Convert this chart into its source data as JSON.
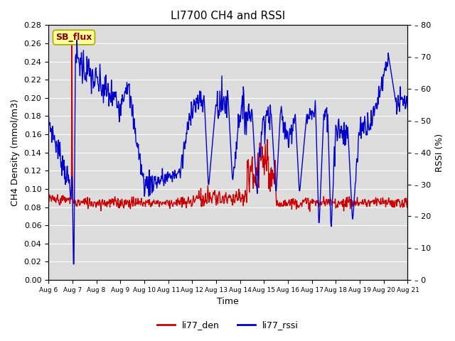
{
  "title": "LI7700 CH4 and RSSI",
  "xlabel": "Time",
  "ylabel_left": "CH4 Density (mmol/m3)",
  "ylabel_right": "RSSI (%)",
  "ylim_left": [
    0.0,
    0.28
  ],
  "ylim_right": [
    0,
    80
  ],
  "yticks_left": [
    0.0,
    0.02,
    0.04,
    0.06,
    0.08,
    0.1,
    0.12,
    0.14,
    0.16,
    0.18,
    0.2,
    0.22,
    0.24,
    0.26,
    0.28
  ],
  "yticks_right": [
    0,
    10,
    20,
    30,
    40,
    50,
    60,
    70,
    80
  ],
  "color_red": "#cc0000",
  "color_blue": "#0000cc",
  "label_den": "li77_den",
  "label_rssi": "li77_rssi",
  "site_label": "SB_flux",
  "site_label_color": "#8b0000",
  "site_label_bg": "#ffff99",
  "bg_color": "#dcdcdc",
  "grid_color": "#ffffff",
  "linewidth": 1.0,
  "tick_fontsize": 8,
  "label_fontsize": 9,
  "title_fontsize": 11
}
